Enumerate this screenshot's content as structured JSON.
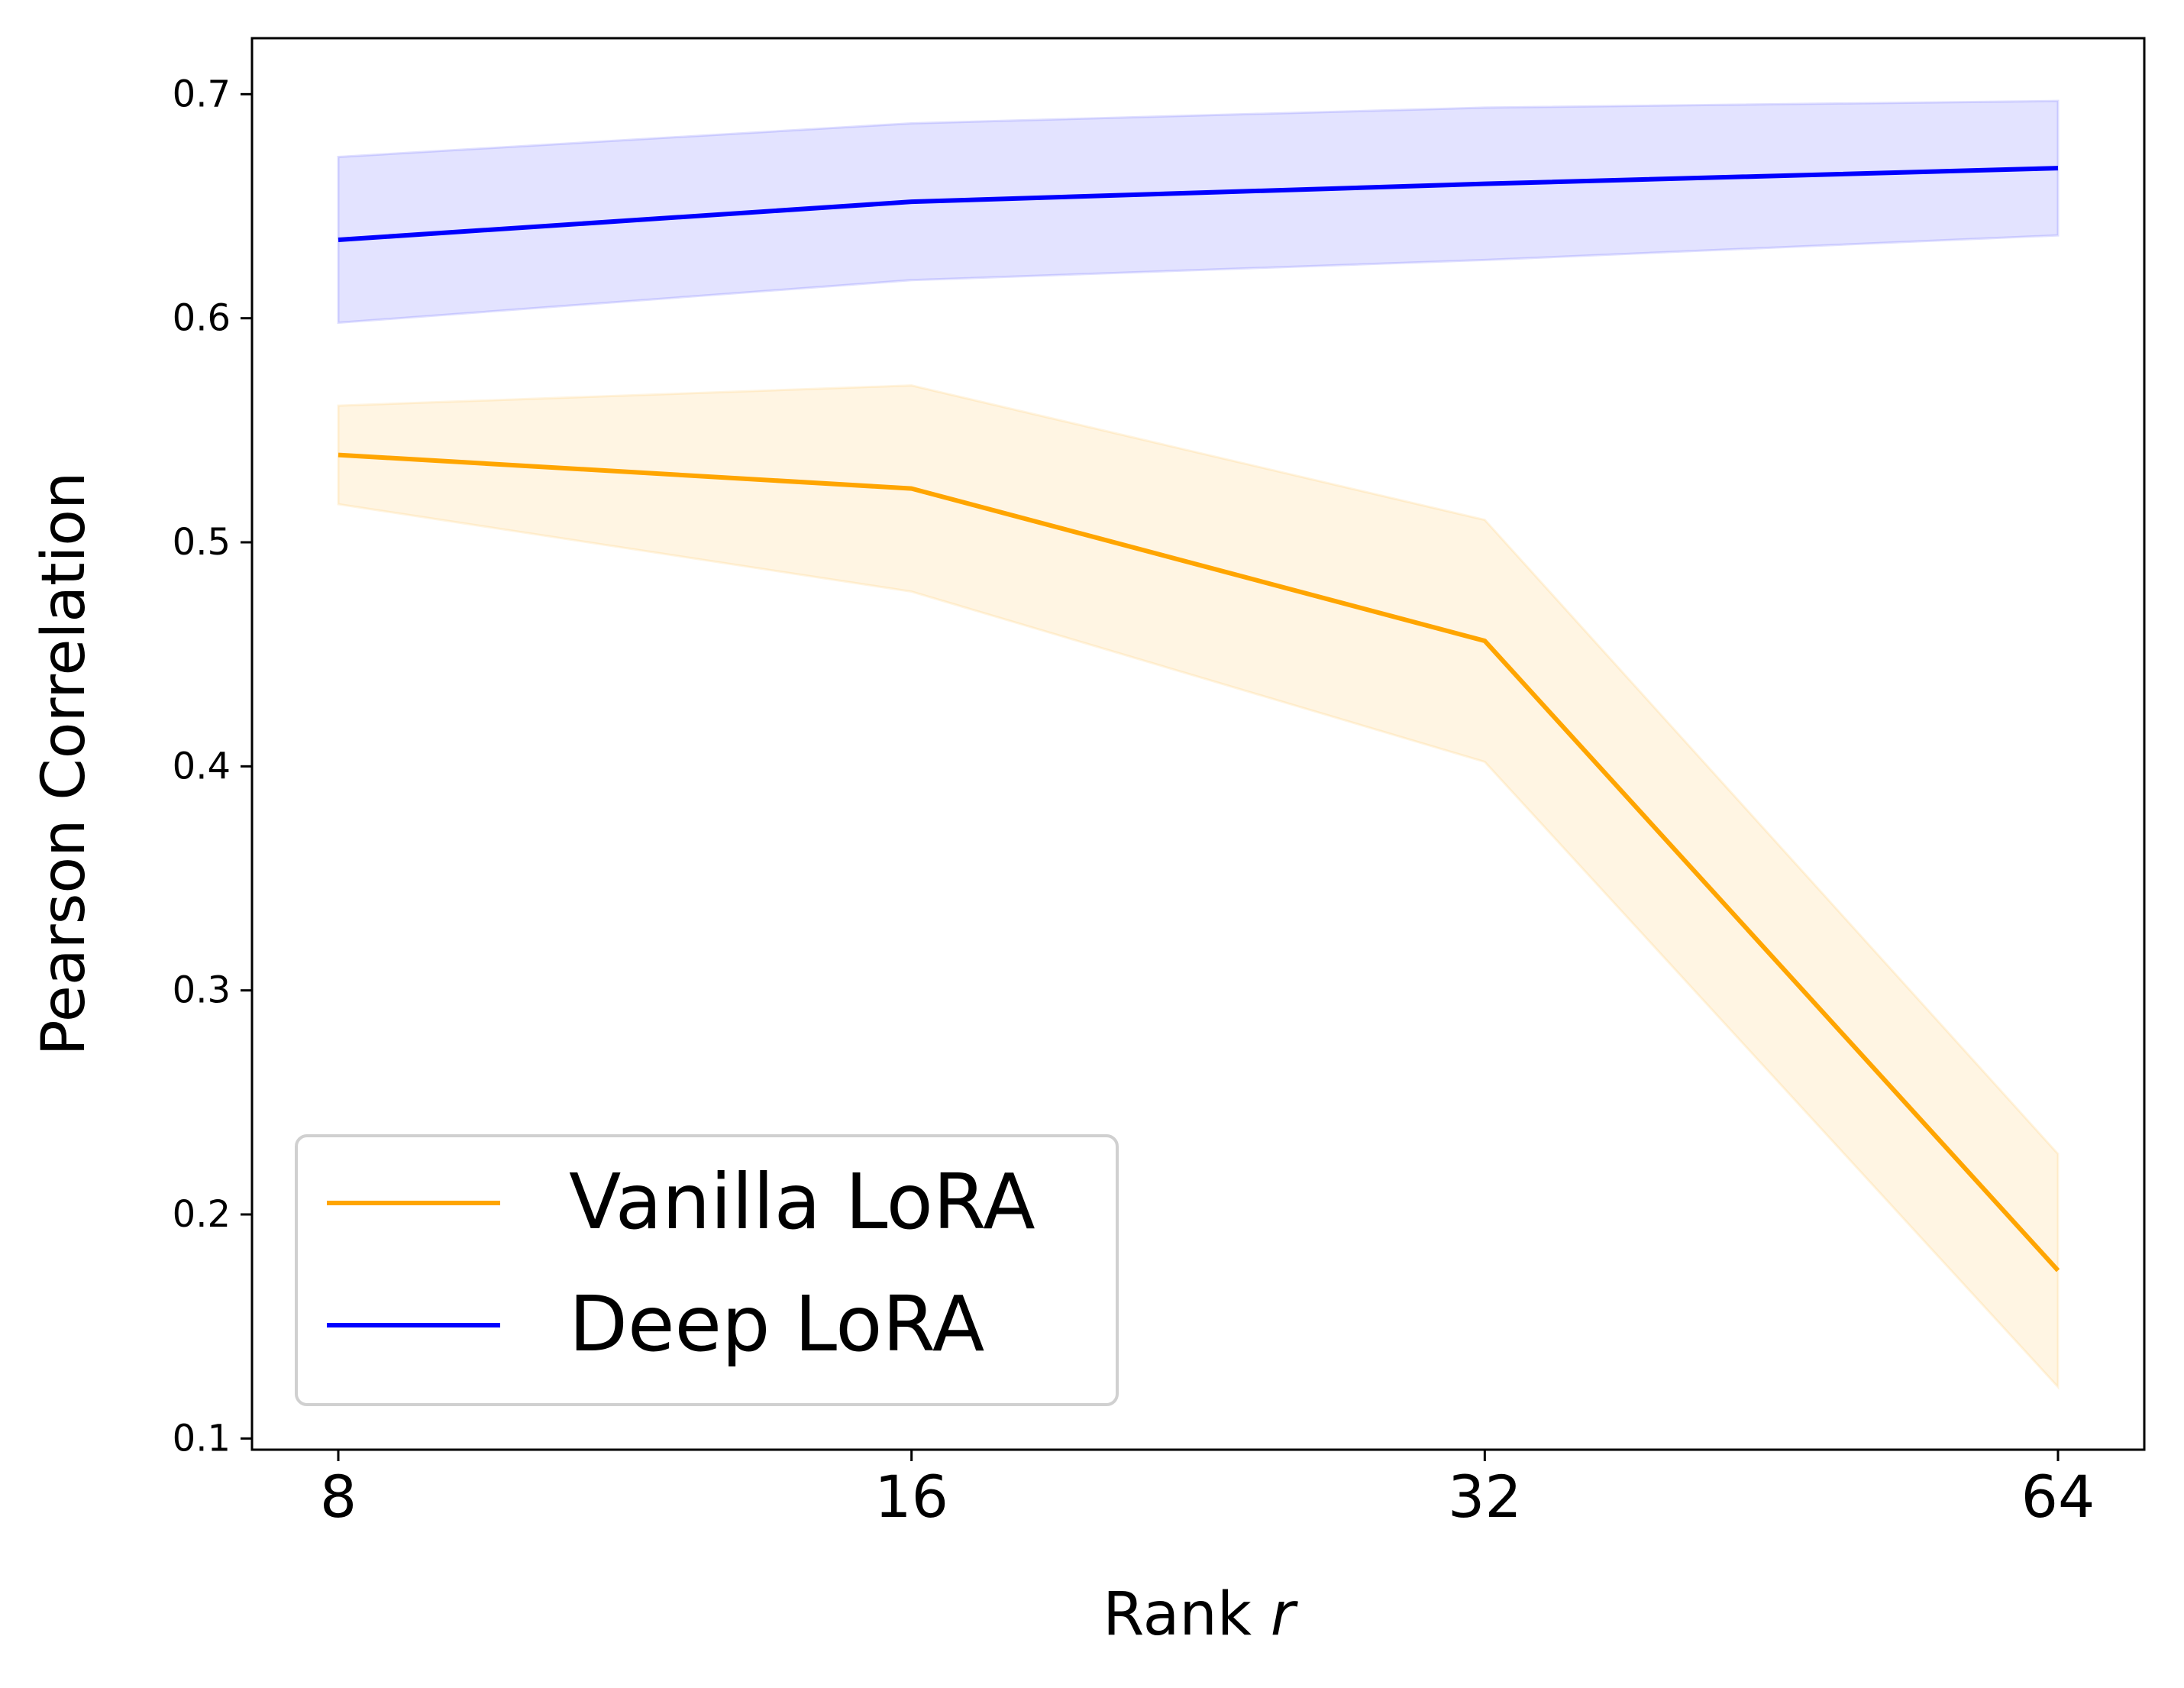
{
  "chart_data": {
    "type": "line",
    "title": "",
    "xlabel_main": "Rank ",
    "xlabel_var": "r",
    "ylabel": "Pearson Correlation",
    "categories": [
      "8",
      "16",
      "32",
      "64"
    ],
    "ylim": [
      0.095,
      0.725
    ],
    "yticks": [
      0.1,
      0.2,
      0.3,
      0.4,
      0.5,
      0.6,
      0.7
    ],
    "ytick_labels": [
      "0.1",
      "0.2",
      "0.3",
      "0.4",
      "0.5",
      "0.6",
      "0.7"
    ],
    "legend_position": "lower-left",
    "grid": false,
    "series": [
      {
        "name": "Vanilla LoRA",
        "color": "#FFA500",
        "values": [
          0.539,
          0.524,
          0.456,
          0.175
        ],
        "lower": [
          0.517,
          0.478,
          0.402,
          0.123
        ],
        "upper": [
          0.561,
          0.57,
          0.51,
          0.227
        ]
      },
      {
        "name": "Deep LoRA",
        "color": "#0000FF",
        "values": [
          0.635,
          0.652,
          0.66,
          0.667
        ],
        "lower": [
          0.598,
          0.617,
          0.626,
          0.637
        ],
        "upper": [
          0.672,
          0.687,
          0.694,
          0.697
        ]
      }
    ]
  }
}
